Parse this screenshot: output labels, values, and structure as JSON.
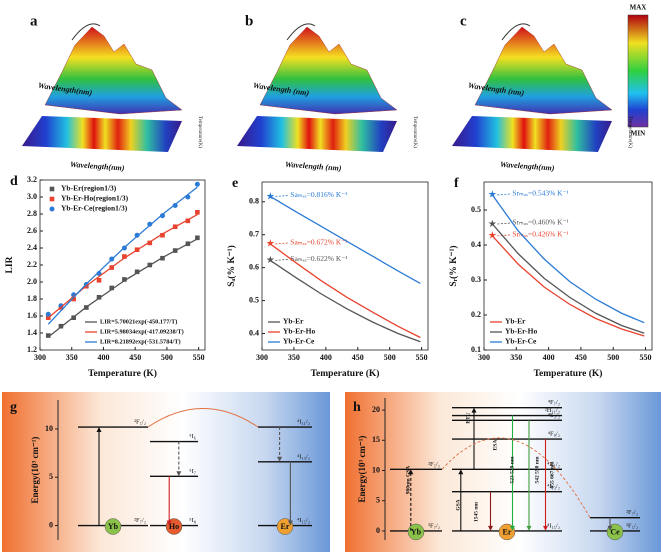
{
  "surfaces": [
    {
      "label": "a",
      "surface_xlabel": "Wavelength(nm)",
      "map_xlabel": "Wavelength(nm)",
      "map_ylabel": "Temperature(K)"
    },
    {
      "label": "b",
      "surface_xlabel": "Wavelength (nm)",
      "map_xlabel": "Wavelength (nm)",
      "map_ylabel": "Temperature(K)"
    },
    {
      "label": "c",
      "surface_xlabel": "Wavelength (nm)",
      "map_xlabel": "Wavelength(nm)",
      "map_ylabel": "Temperature(K)"
    }
  ],
  "colorbar": {
    "max": "MAX",
    "min": "MIN"
  },
  "chart_data": [
    {
      "type": "scatter",
      "panel": "d",
      "xlabel": "Temperature (K)",
      "ylabel": "LIR",
      "xlim": [
        300,
        560
      ],
      "xticks": [
        300,
        350,
        400,
        450,
        500,
        550
      ],
      "ylim": [
        1.2,
        3.2
      ],
      "yticks": [
        1.2,
        1.4,
        1.6,
        1.8,
        {
          "value": 2,
          "label": "2.0"
        },
        2.2,
        2.4,
        2.6,
        2.8,
        {
          "value": 3,
          "label": "3.0"
        },
        3.2
      ],
      "legend": "upper left",
      "fit_legend": "lower right",
      "series": [
        {
          "name": "Yb-Er(region1/3)",
          "color": "#555555",
          "mode": "markers",
          "marker": "square",
          "x": [
            313,
            333,
            353,
            373,
            393,
            413,
            433,
            453,
            473,
            493,
            513,
            533,
            548
          ],
          "values": [
            1.37,
            1.48,
            1.58,
            1.7,
            1.82,
            1.93,
            2.03,
            2.12,
            2.2,
            2.28,
            2.37,
            2.45,
            2.52
          ]
        },
        {
          "name": "Yb-Er-Ho(region1/3)",
          "color": "#e8432e",
          "mode": "markers",
          "marker": "square",
          "x": [
            313,
            333,
            353,
            373,
            393,
            413,
            433,
            453,
            473,
            493,
            513,
            533,
            548
          ],
          "values": [
            1.58,
            1.7,
            1.8,
            1.95,
            2.02,
            2.17,
            2.3,
            2.38,
            2.46,
            2.55,
            2.65,
            2.72,
            2.82
          ]
        },
        {
          "name": "Yb-Er-Ce(region1/3)",
          "color": "#2b7bd6",
          "mode": "markers",
          "marker": "circle",
          "x": [
            313,
            333,
            353,
            373,
            393,
            413,
            433,
            453,
            473,
            493,
            513,
            533,
            548
          ],
          "values": [
            1.62,
            1.72,
            1.85,
            1.97,
            2.1,
            2.27,
            2.4,
            2.55,
            2.68,
            2.78,
            2.9,
            3.0,
            3.15
          ]
        },
        {
          "name": "LIR=5.70021exp(-450.177/T)",
          "color": "#555555",
          "mode": "lines",
          "x": [
            313,
            373,
            433,
            493,
            548
          ],
          "values": [
            1.353,
            1.705,
            2.016,
            2.288,
            2.507
          ]
        },
        {
          "name": "LIR=5.98034exp(-417.09238/T)",
          "color": "#e8432e",
          "mode": "lines",
          "x": [
            313,
            373,
            433,
            493,
            548
          ],
          "values": [
            1.578,
            1.955,
            2.282,
            2.566,
            2.794
          ]
        },
        {
          "name": "LIR=8.21892exp(-531.5784/T)",
          "color": "#2b7bd6",
          "mode": "lines",
          "x": [
            313,
            373,
            433,
            493,
            548
          ],
          "values": [
            1.504,
            1.977,
            2.408,
            2.796,
            3.116
          ]
        }
      ]
    },
    {
      "type": "line",
      "panel": "e",
      "xlabel": "Temperature (K)",
      "ylabel": "Sₐ(% K⁻¹)",
      "xlim": [
        300,
        560
      ],
      "xticks": [
        300,
        350,
        400,
        450,
        500,
        550
      ],
      "ylim": [
        0.35,
        0.86
      ],
      "yticks": [
        0.4,
        0.5,
        0.6,
        0.7,
        0.8
      ],
      "legend": "lower left",
      "x": [
        313,
        353,
        393,
        433,
        473,
        513,
        548
      ],
      "series": [
        {
          "name": "Yb-Er",
          "color": "#555555",
          "values": [
            0.622,
            0.57,
            0.52,
            0.475,
            0.435,
            0.4,
            0.375
          ],
          "value_labels": [
            "Saₘₐₓ=0.622% K⁻¹",
            null,
            null,
            null,
            null,
            null,
            null
          ]
        },
        {
          "name": "Yb-Er-Ho",
          "color": "#e8432e",
          "values": [
            0.672,
            0.615,
            0.56,
            0.51,
            0.465,
            0.422,
            0.388
          ],
          "value_labels": [
            "Saₘₐₓ=0.672% K⁻¹",
            null,
            null,
            null,
            null,
            null,
            null
          ]
        },
        {
          "name": "Yb-Er-Ce",
          "color": "#2b7bd6",
          "values": [
            0.816,
            0.77,
            0.725,
            0.68,
            0.635,
            0.59,
            0.552
          ],
          "value_labels": [
            "Saₘₐₓ=0.816% K⁻¹",
            null,
            null,
            null,
            null,
            null,
            null
          ]
        }
      ]
    },
    {
      "type": "line",
      "panel": "f",
      "xlabel": "Temperature (K)",
      "ylabel": "Sᵣ(% K⁻¹)",
      "xlim": [
        300,
        560
      ],
      "xticks": [
        300,
        350,
        400,
        450,
        500,
        550
      ],
      "ylim": [
        0.1,
        0.58
      ],
      "yticks": [
        0.1,
        0.2,
        0.3,
        0.4,
        0.5
      ],
      "legend": "lower left",
      "x": [
        313,
        353,
        393,
        433,
        473,
        513,
        548
      ],
      "series": [
        {
          "name": "Yb-Er",
          "color": "#e8432e",
          "values": [
            0.426,
            0.345,
            0.28,
            0.23,
            0.19,
            0.16,
            0.14
          ],
          "value_labels": [
            "Srₘₐₓ=0.426% K⁻¹",
            null,
            null,
            null,
            null,
            null,
            null
          ]
        },
        {
          "name": "Yb-Er-Ho",
          "color": "#555555",
          "values": [
            0.46,
            0.375,
            0.305,
            0.25,
            0.205,
            0.17,
            0.148
          ],
          "value_labels": [
            "Srₘₐₓ=0.460% K⁻¹",
            null,
            null,
            null,
            null,
            null,
            null
          ]
        },
        {
          "name": "Yb-Er-Ce",
          "color": "#2b7bd6",
          "values": [
            0.543,
            0.44,
            0.36,
            0.295,
            0.245,
            0.205,
            0.178
          ],
          "value_labels": [
            "Srₘₐₓ=0.543% K⁻¹",
            null,
            null,
            null,
            null,
            null,
            null
          ]
        }
      ]
    }
  ],
  "diagrams": [
    {
      "panel": "g",
      "ylabel": "Energy(10³ cm⁻¹)",
      "ylim": [
        -1.5,
        13
      ],
      "yticks": [
        0,
        5,
        10
      ],
      "ions": [
        {
          "name": "Yb",
          "color": "#8bc34a",
          "levels": [
            {
              "label": "²F₇/₂",
              "energy": 0
            },
            {
              "label": "²F₅/₂",
              "energy": 10.2
            }
          ]
        },
        {
          "name": "Ho",
          "color": "#e65c2e",
          "levels": [
            {
              "label": "⁵I₈",
              "energy": 0
            },
            {
              "label": "⁵I₇",
              "energy": 5.1
            },
            {
              "label": "⁵I₆",
              "energy": 8.7
            }
          ]
        },
        {
          "name": "Er",
          "color": "#f0a030",
          "levels": [
            {
              "label": "⁴I₁₅/₂",
              "energy": 0
            },
            {
              "label": "⁴I₁₃/₂",
              "energy": 6.6
            },
            {
              "label": "⁴I₁₁/₂",
              "energy": 10.2
            }
          ]
        }
      ],
      "labels": []
    },
    {
      "panel": "h",
      "ylabel": "Energy(10³ cm⁻¹)",
      "ylim": [
        -1.5,
        22
      ],
      "yticks": [
        0,
        5,
        10,
        15,
        20
      ],
      "ions": [
        {
          "name": "Yb",
          "color": "#8bc34a",
          "levels": [
            {
              "label": "²F₇/₂",
              "energy": 0
            },
            {
              "label": "²F₅/₂",
              "energy": 10.2
            }
          ]
        },
        {
          "name": "Er",
          "color": "#f0a030",
          "levels": [
            {
              "label": "⁴I₁₅/₂",
              "energy": 0
            },
            {
              "label": "⁴I₁₃/₂",
              "energy": 6.5
            },
            {
              "label": "⁴I₁₁/₂",
              "energy": 10.2
            },
            {
              "label": "⁴F₉/₂",
              "energy": 15.2
            },
            {
              "label": "⁴S₃/₂",
              "energy": 18.3
            },
            {
              "label": "²H₁₁/₂",
              "energy": 19.1
            },
            {
              "label": "⁴F₇/₂",
              "energy": 20.4
            }
          ]
        },
        {
          "name": "Ce",
          "color": "#8bc34a",
          "levels": [
            {
              "label": "²F₅/₂",
              "energy": 0
            },
            {
              "label": "²F₇/₂",
              "energy": 2.2
            }
          ]
        }
      ],
      "labels": [
        "980nm GSA",
        "GSA",
        "ESA",
        "1545 nm",
        "523 529 nm",
        "542 550 nm",
        "655 667 nm",
        "ETU"
      ]
    }
  ]
}
